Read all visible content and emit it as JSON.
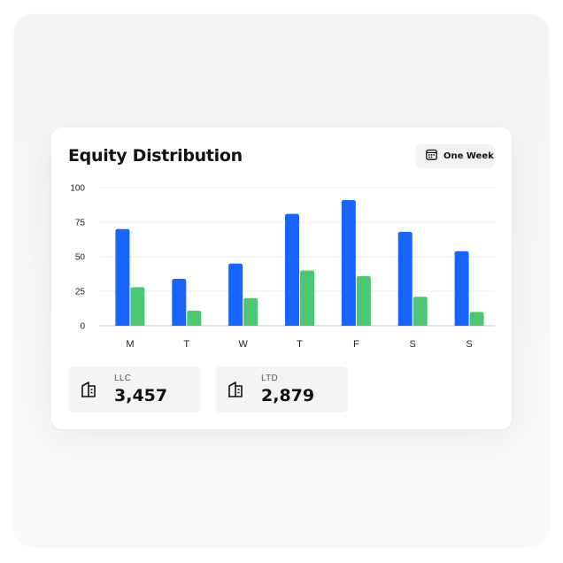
{
  "card": {
    "title": "Equity Distribution",
    "range_button": {
      "label": "One Week",
      "icon": "calendar-icon"
    }
  },
  "colors": {
    "series_a": "#1665ff",
    "series_b": "#4cc774",
    "grid": "#ececec",
    "axis": "#cfcfcf"
  },
  "chart_data": {
    "type": "bar",
    "title": "Equity Distribution",
    "xlabel": "",
    "ylabel": "",
    "categories": [
      "M",
      "T",
      "W",
      "T",
      "F",
      "S",
      "S"
    ],
    "yticks": [
      0,
      25,
      50,
      75,
      100
    ],
    "ylim": [
      0,
      100
    ],
    "grid": true,
    "series": [
      {
        "values": [
          70,
          34,
          45,
          81,
          91,
          68,
          54
        ]
      },
      {
        "values": [
          28,
          11,
          20,
          40,
          36,
          21,
          10
        ]
      }
    ]
  },
  "stats": [
    {
      "label": "LLC",
      "value": "3,457",
      "icon": "building-icon"
    },
    {
      "label": "LTD",
      "value": "2,879",
      "icon": "building-icon"
    }
  ]
}
